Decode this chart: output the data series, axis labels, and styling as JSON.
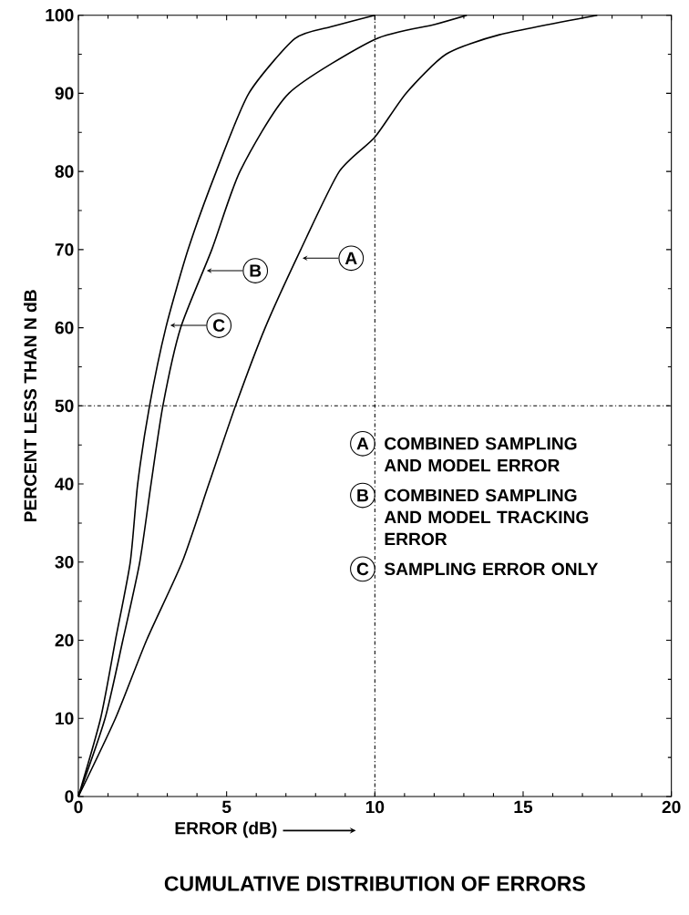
{
  "chart_data": {
    "type": "line",
    "title": "CUMULATIVE DISTRIBUTION OF ERRORS",
    "xlabel": "ERROR (dB)",
    "ylabel": "PERCENT LESS THAN N dB",
    "xlim": [
      0,
      20
    ],
    "ylim": [
      0,
      100
    ],
    "xticks": [
      0,
      5,
      10,
      15,
      20
    ],
    "yticks": [
      0,
      10,
      20,
      30,
      40,
      50,
      60,
      70,
      80,
      90,
      100
    ],
    "legend": "right",
    "line_style": "solid",
    "series": [
      {
        "name": "COMBINED SAMPLING AND MODEL ERROR",
        "color": "#000000",
        "x": [
          0,
          1.25,
          2.3,
          3.5,
          4.4,
          5.3,
          6.3,
          7.5,
          8.8,
          10,
          11.05,
          12.4,
          14.2,
          17.5
        ],
        "values": [
          0,
          10,
          20,
          30,
          40,
          50,
          60,
          70,
          80,
          84.4,
          90,
          95,
          97.5,
          100
        ]
      },
      {
        "name": "COMBINED SAMPLING AND MODEL TRACKING ERROR",
        "color": "#000000",
        "x": [
          0,
          0.9,
          1.5,
          2.07,
          2.45,
          2.85,
          3.45,
          4.5,
          5.45,
          7.1,
          10,
          12,
          13.1
        ],
        "values": [
          0,
          10,
          20,
          30,
          40,
          50,
          60,
          70,
          80,
          90,
          96.9,
          98.8,
          100
        ]
      },
      {
        "name": "SAMPLING ERROR ONLY",
        "color": "#000000",
        "x": [
          0,
          0.75,
          1.25,
          1.75,
          2.0,
          2.4,
          2.95,
          3.7,
          4.65,
          5.75,
          7.3,
          8.5,
          10
        ],
        "values": [
          0,
          10,
          20,
          30,
          40,
          50,
          60,
          70,
          80,
          90,
          97,
          98.5,
          100
        ]
      }
    ],
    "annotations": [
      {
        "text": "A",
        "x": 7.56,
        "y": 68.9
      },
      {
        "text": "B",
        "x": 4.33,
        "y": 67.3
      },
      {
        "text": "C",
        "x": 3.1,
        "y": 60.3
      }
    ],
    "ref_lines": [
      {
        "axis": "y",
        "value": 50,
        "line_style": "dashdot"
      },
      {
        "axis": "x",
        "value": 10,
        "line_style": "dashdot"
      }
    ]
  }
}
